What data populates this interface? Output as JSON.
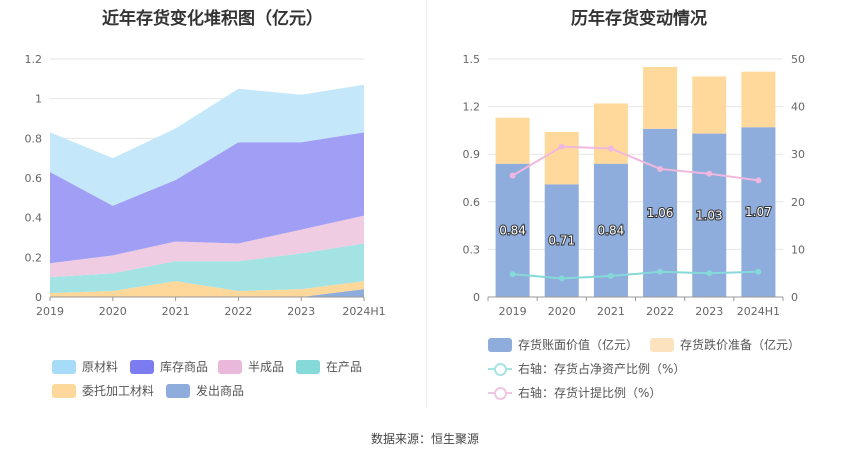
{
  "source": "数据来源：恒生聚源",
  "chart_data": [
    {
      "type": "area",
      "title": "近年存货变化堆积图（亿元）",
      "categories": [
        "2019",
        "2020",
        "2021",
        "2022",
        "2023",
        "2024H1"
      ],
      "ylim": [
        0,
        1.2
      ],
      "yticks": [
        "0",
        "0.2",
        "0.4",
        "0.6",
        "0.8",
        "1",
        "1.2"
      ],
      "stacked": true,
      "grid": true,
      "legend_position": "bottom",
      "series": [
        {
          "name": "发出商品",
          "color": "#8eacdc",
          "values": [
            0.0,
            0.0,
            0.0,
            0.0,
            0.0,
            0.04
          ]
        },
        {
          "name": "委托加工材料",
          "color": "#fdd89a",
          "values": [
            0.02,
            0.03,
            0.08,
            0.03,
            0.04,
            0.04
          ]
        },
        {
          "name": "在产品",
          "color": "#a3e3e3",
          "values": [
            0.08,
            0.09,
            0.1,
            0.15,
            0.18,
            0.19
          ]
        },
        {
          "name": "半成品",
          "color": "#f0cce3",
          "values": [
            0.07,
            0.09,
            0.1,
            0.09,
            0.12,
            0.14
          ]
        },
        {
          "name": "库存商品",
          "color": "#a19ef5",
          "values": [
            0.46,
            0.25,
            0.31,
            0.51,
            0.44,
            0.42
          ]
        },
        {
          "name": "原材料",
          "color": "#c4e8fa",
          "values": [
            0.2,
            0.24,
            0.26,
            0.27,
            0.24,
            0.24
          ]
        }
      ],
      "legend": [
        {
          "name": "原材料",
          "color": "#a6dcf7"
        },
        {
          "name": "库存商品",
          "color": "#7b7cf0"
        },
        {
          "name": "半成品",
          "color": "#eab8da"
        },
        {
          "name": "在产品",
          "color": "#86d9d9"
        },
        {
          "name": "委托加工材料",
          "color": "#fdd89a"
        },
        {
          "name": "发出商品",
          "color": "#8eacdc"
        }
      ]
    },
    {
      "type": "bar",
      "title": "历年存货变动情况",
      "categories": [
        "2019",
        "2020",
        "2021",
        "2022",
        "2023",
        "2024H1"
      ],
      "ylim": [
        0,
        1.5
      ],
      "yticks": [
        "0",
        "0.3",
        "0.6",
        "0.9",
        "1.2",
        "1.5"
      ],
      "y2lim": [
        0,
        50
      ],
      "y2ticks": [
        "0",
        "10",
        "20",
        "30",
        "40",
        "50"
      ],
      "stacked": true,
      "grid": true,
      "legend_position": "bottom",
      "series": [
        {
          "name": "存货账面价值（亿元）",
          "color": "#8eacdc",
          "values": [
            0.84,
            0.71,
            0.84,
            1.06,
            1.03,
            1.07
          ],
          "labels": [
            "0.84",
            "0.71",
            "0.84",
            "1.06",
            "1.03",
            "1.07"
          ]
        },
        {
          "name": "存货跌价准备（亿元）",
          "color": "#fed99b",
          "values": [
            0.29,
            0.33,
            0.38,
            0.39,
            0.36,
            0.35
          ]
        }
      ],
      "lines": [
        {
          "name": "右轴：存货占净资产比例（%）",
          "color": "#86d9d9",
          "axis": "right",
          "values": [
            4.8,
            3.9,
            4.4,
            5.3,
            5.0,
            5.3
          ]
        },
        {
          "name": "右轴：存货计提比例（%）",
          "color": "#f0b8de",
          "axis": "right",
          "values": [
            25.5,
            31.6,
            31.2,
            26.9,
            25.9,
            24.5
          ]
        }
      ],
      "legend": [
        {
          "name": "存货账面价值（亿元）",
          "color": "#8eacdc",
          "kind": "box"
        },
        {
          "name": "存货跌价准备（亿元）",
          "color": "#fde3bd",
          "kind": "box"
        },
        {
          "name": "右轴：存货占净资产比例（%）",
          "color": "#a8e3e3",
          "kind": "line"
        },
        {
          "name": "右轴：存货计提比例（%）",
          "color": "#f0c6e3",
          "kind": "line"
        }
      ]
    }
  ]
}
